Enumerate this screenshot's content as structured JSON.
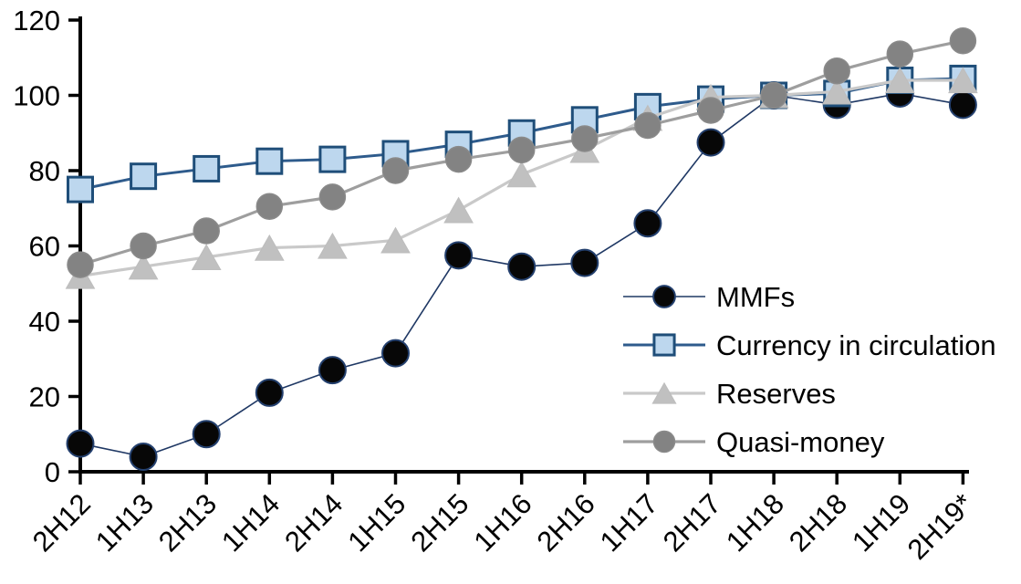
{
  "chart_data": {
    "type": "line",
    "title": "",
    "xlabel": "",
    "ylabel": "",
    "ylim": [
      0,
      120
    ],
    "yticks": [
      0,
      20,
      40,
      60,
      80,
      100,
      120
    ],
    "grid": false,
    "legend_position": "center-right-inside",
    "axis_color": "#000000",
    "categories": [
      "2H12",
      "1H13",
      "2H13",
      "1H14",
      "2H14",
      "1H15",
      "2H15",
      "1H16",
      "2H16",
      "1H17",
      "2H17",
      "1H18",
      "2H18",
      "1H19",
      "2H19*"
    ],
    "series": [
      {
        "name": "MMFs",
        "marker": "circle",
        "marker_fill": "#070707",
        "marker_stroke": "#24406e",
        "marker_stroke_width": 2,
        "marker_size": 29,
        "line_color": "#1f3864",
        "line_width": 1.6,
        "values": [
          7.5,
          4,
          10,
          21,
          27,
          31.5,
          57.5,
          54.5,
          55.5,
          66,
          87.5,
          100,
          97.5,
          100.5,
          97.5
        ]
      },
      {
        "name": "Currency in circulation",
        "marker": "square",
        "marker_fill": "#bdd7ee",
        "marker_stroke": "#1f4e79",
        "marker_stroke_width": 3,
        "marker_size": 27,
        "line_color": "#2e5b8c",
        "line_width": 3,
        "values": [
          75,
          78.5,
          80.5,
          82.5,
          83,
          84.5,
          87,
          90,
          93.5,
          97,
          99,
          100,
          100.5,
          104,
          104.5
        ]
      },
      {
        "name": "Reserves",
        "marker": "triangle",
        "marker_fill": "#c0c0c0",
        "marker_stroke": "#bdbdbd",
        "marker_stroke_width": 1,
        "marker_size": 31,
        "line_color": "#c9c9c9",
        "line_width": 3.2,
        "values": [
          52,
          54.5,
          57,
          59.5,
          60,
          61.5,
          69.5,
          79,
          85.5,
          94,
          99.5,
          100,
          101,
          104,
          104
        ]
      },
      {
        "name": "Quasi-money",
        "marker": "circle",
        "marker_fill": "#838383",
        "marker_stroke": "#8a8a8a",
        "marker_stroke_width": 1.5,
        "marker_size": 28,
        "line_color": "#9e9e9e",
        "line_width": 3.2,
        "values": [
          55,
          60,
          64,
          70.5,
          73,
          80,
          83,
          85.5,
          88.5,
          92,
          96,
          100,
          106.5,
          111,
          114.5
        ]
      }
    ]
  }
}
